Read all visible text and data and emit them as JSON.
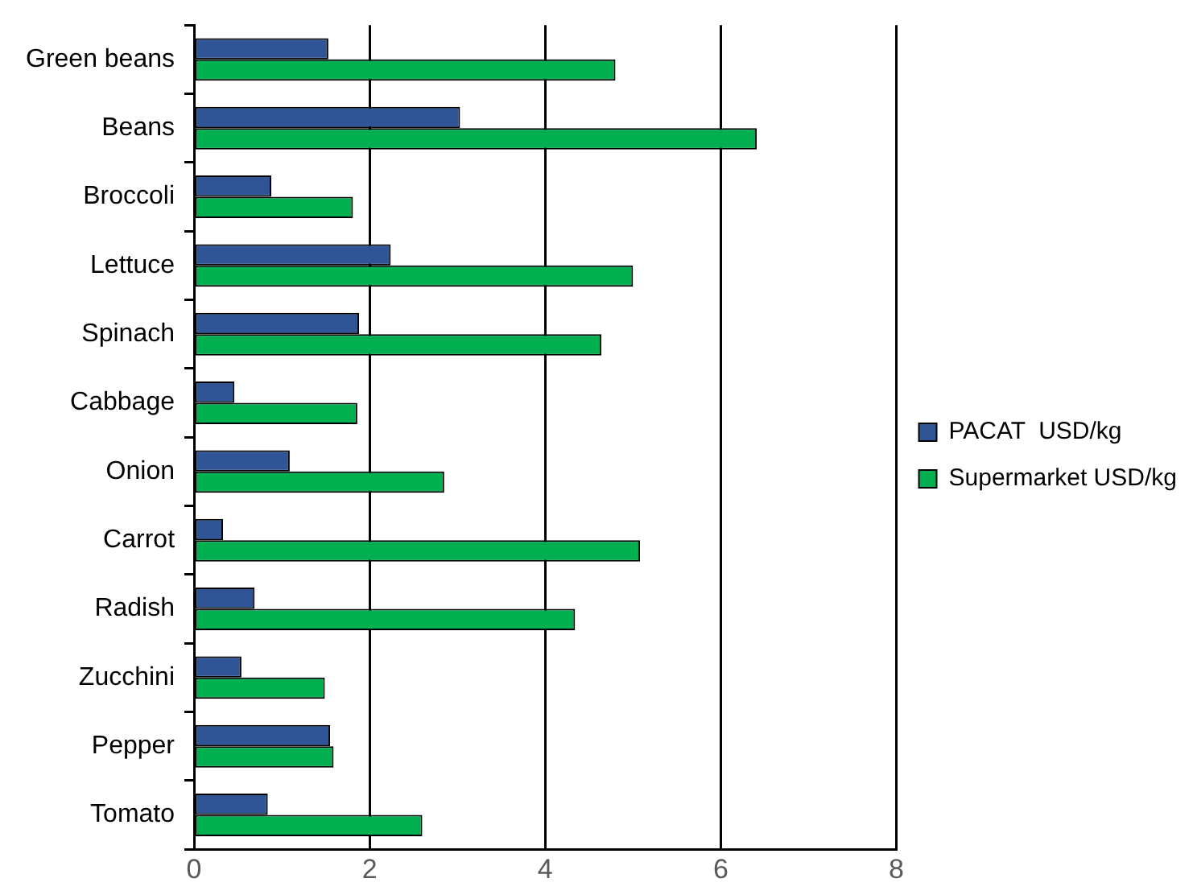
{
  "chart_data": {
    "type": "bar",
    "orientation": "horizontal",
    "categories": [
      "Green beans",
      "Beans",
      "Broccoli",
      "Lettuce",
      "Spinach",
      "Cabbage",
      "Onion",
      "Carrot",
      "Radish",
      "Zucchini",
      "Pepper",
      "Tomato"
    ],
    "series": [
      {
        "name": "PACAT  USD/kg",
        "color": "#2f5597",
        "values": [
          1.53,
          3.03,
          0.88,
          2.24,
          1.88,
          0.46,
          1.09,
          0.33,
          0.69,
          0.54,
          1.55,
          0.84
        ]
      },
      {
        "name": "Supermarket USD/kg",
        "color": "#00b050",
        "values": [
          4.8,
          6.41,
          1.81,
          5.0,
          4.64,
          1.86,
          2.85,
          5.08,
          4.34,
          1.49,
          1.59,
          2.6
        ]
      }
    ],
    "xlim": [
      0,
      8
    ],
    "xticks": [
      0,
      2,
      4,
      6,
      8
    ],
    "grid": "x",
    "legend": "right"
  }
}
